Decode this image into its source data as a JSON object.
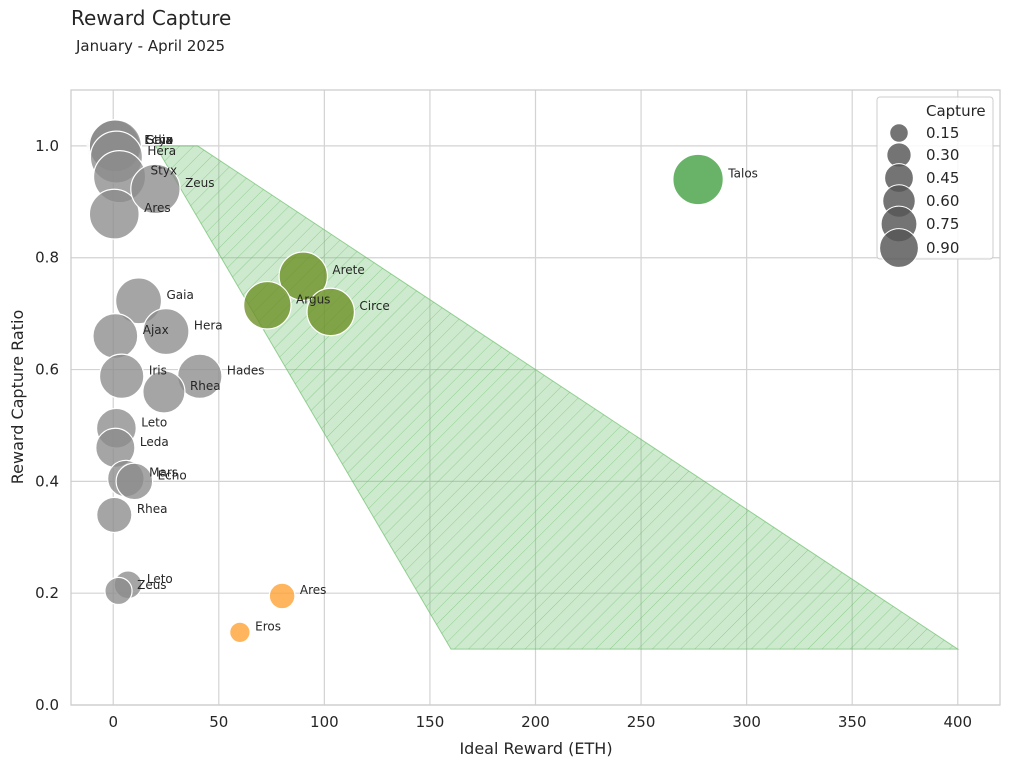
{
  "chart_data": {
    "type": "scatter",
    "title": "Reward Capture",
    "subtitle": "January - April 2025",
    "xlabel": "Ideal Reward (ETH)",
    "ylabel": "Reward Capture Ratio",
    "xlim": [
      -20,
      420
    ],
    "ylim": [
      0,
      1.1
    ],
    "x_ticks": [
      0,
      50,
      100,
      150,
      200,
      250,
      300,
      350,
      400
    ],
    "y_ticks": [
      0.0,
      0.2,
      0.4,
      0.6,
      0.8,
      1.0
    ],
    "x_tick_labels": [
      "0",
      "50",
      "100",
      "150",
      "200",
      "250",
      "300",
      "350",
      "400"
    ],
    "y_tick_labels": [
      "0.0",
      "0.2",
      "0.4",
      "0.6",
      "0.8",
      "1.0"
    ],
    "grid": true,
    "size_encoding": "Capture",
    "colors": {
      "gray": "#8c8c8c",
      "olive": "#6b8e23",
      "green": "#3f9e3f",
      "orange": "#ffa030",
      "region_fill": "#6abf69",
      "region_edge": "#5cb85c"
    },
    "region_polygon": [
      {
        "x": 20,
        "y": 1.0
      },
      {
        "x": 40,
        "y": 1.0
      },
      {
        "x": 400,
        "y": 0.1
      },
      {
        "x": 160,
        "y": 0.1
      }
    ],
    "points": [
      {
        "name": "Echo",
        "x": 0.0,
        "y": 1.0,
        "size": 1.0,
        "color": "gray"
      },
      {
        "name": "Gaia",
        "x": 0.5,
        "y": 1.0,
        "size": 1.0,
        "color": "gray"
      },
      {
        "name": "Styx",
        "x": 1.0,
        "y": 1.0,
        "size": 1.0,
        "color": "gray"
      },
      {
        "name": "Hera",
        "x": 1.5,
        "y": 0.98,
        "size": 1.0,
        "color": "gray"
      },
      {
        "name": "Styx",
        "x": 3.0,
        "y": 0.945,
        "size": 1.0,
        "color": "gray"
      },
      {
        "name": "Zeus",
        "x": 20.0,
        "y": 0.923,
        "size": 0.88,
        "color": "gray"
      },
      {
        "name": "Ares",
        "x": 0.5,
        "y": 0.878,
        "size": 0.9,
        "color": "gray"
      },
      {
        "name": "Gaia",
        "x": 12.0,
        "y": 0.723,
        "size": 0.74,
        "color": "gray"
      },
      {
        "name": "Hera",
        "x": 25.0,
        "y": 0.668,
        "size": 0.74,
        "color": "gray"
      },
      {
        "name": "Ajax",
        "x": 1.0,
        "y": 0.66,
        "size": 0.7,
        "color": "gray"
      },
      {
        "name": "Iris",
        "x": 4.0,
        "y": 0.588,
        "size": 0.68,
        "color": "gray"
      },
      {
        "name": "Hades",
        "x": 41.0,
        "y": 0.588,
        "size": 0.68,
        "color": "gray"
      },
      {
        "name": "Rhea",
        "x": 24.0,
        "y": 0.56,
        "size": 0.6,
        "color": "gray"
      },
      {
        "name": "Leto",
        "x": 1.5,
        "y": 0.495,
        "size": 0.52,
        "color": "gray"
      },
      {
        "name": "Leda",
        "x": 1.0,
        "y": 0.46,
        "size": 0.5,
        "color": "gray"
      },
      {
        "name": "Mars",
        "x": 6.0,
        "y": 0.405,
        "size": 0.42,
        "color": "gray"
      },
      {
        "name": "Echo",
        "x": 10.0,
        "y": 0.4,
        "size": 0.42,
        "color": "gray"
      },
      {
        "name": "Rhea",
        "x": 0.5,
        "y": 0.34,
        "size": 0.38,
        "color": "gray"
      },
      {
        "name": "Leto",
        "x": 7.0,
        "y": 0.215,
        "size": 0.2,
        "color": "gray"
      },
      {
        "name": "Zeus",
        "x": 2.5,
        "y": 0.204,
        "size": 0.19,
        "color": "gray"
      },
      {
        "name": "Arete",
        "x": 90.0,
        "y": 0.767,
        "size": 0.84,
        "color": "olive"
      },
      {
        "name": "Argus",
        "x": 73.0,
        "y": 0.715,
        "size": 0.8,
        "color": "olive"
      },
      {
        "name": "Circe",
        "x": 103.0,
        "y": 0.703,
        "size": 0.8,
        "color": "olive"
      },
      {
        "name": "Talos",
        "x": 277.0,
        "y": 0.94,
        "size": 0.93,
        "color": "green"
      },
      {
        "name": "Ares",
        "x": 80.0,
        "y": 0.195,
        "size": 0.16,
        "color": "orange"
      },
      {
        "name": "Eros",
        "x": 60.0,
        "y": 0.13,
        "size": 0.08,
        "color": "orange"
      }
    ],
    "legend": {
      "title": "Capture",
      "placement": "top-right",
      "entries": [
        {
          "label": "0.15",
          "size": 0.15
        },
        {
          "label": "0.30",
          "size": 0.3
        },
        {
          "label": "0.45",
          "size": 0.45
        },
        {
          "label": "0.60",
          "size": 0.6
        },
        {
          "label": "0.75",
          "size": 0.75
        },
        {
          "label": "0.90",
          "size": 0.9
        }
      ]
    }
  }
}
